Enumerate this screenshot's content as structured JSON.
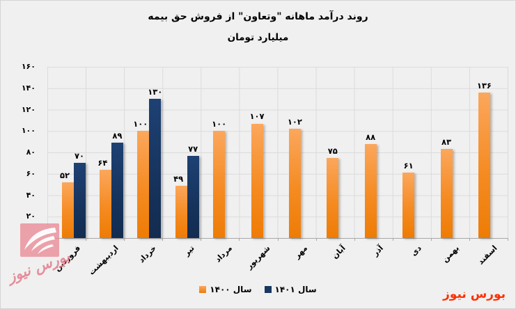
{
  "title": {
    "line1": "روند درآمد ماهانه \"وتعاون\" از فروش حق بیمه",
    "line2": "میلیارد تومان"
  },
  "chart_data": {
    "type": "bar",
    "title": "روند درآمد ماهانه \"وتعاون\" از فروش حق بیمه",
    "ylabel": "میلیارد تومان",
    "categories": [
      "فروردین",
      "اردیبهشت",
      "خرداد",
      "تیر",
      "مرداد",
      "شهریور",
      "مهر",
      "آبان",
      "آذر",
      "دی",
      "بهمن",
      "اسفند"
    ],
    "series": [
      {
        "name": "سال ۱۴۰۰",
        "color": "#EE7C05",
        "values": [
          52,
          64,
          100,
          49,
          100,
          107,
          102,
          75,
          88,
          61,
          83,
          136
        ],
        "labels": [
          "۵۲",
          "۶۴",
          "۱۰۰",
          "۴۹",
          "۱۰۰",
          "۱۰۷",
          "۱۰۲",
          "۷۵",
          "۸۸",
          "۶۱",
          "۸۳",
          "۱۳۶"
        ]
      },
      {
        "name": "سال ۱۴۰۱",
        "color": "#17375E",
        "values": [
          70,
          89,
          130,
          77,
          null,
          null,
          null,
          null,
          null,
          null,
          null,
          null
        ],
        "labels": [
          "۷۰",
          "۸۹",
          "۱۳۰",
          "۷۷",
          null,
          null,
          null,
          null,
          null,
          null,
          null,
          null
        ]
      }
    ],
    "ylim": [
      0,
      160
    ],
    "ytick_step": 20,
    "ytick_labels_bottom_up": [
      "۰",
      "۲۰",
      "۴۰",
      "۶۰",
      "۸۰",
      "۱۰۰",
      "۱۲۰",
      "۱۴۰",
      "۱۶۰"
    ],
    "grid": true,
    "legend_position": "bottom-center"
  },
  "legend": {
    "items": [
      {
        "label": "سال ۱۴۰۰",
        "color": "#EE7C05"
      },
      {
        "label": "سال ۱۴۰۱",
        "color": "#17375E"
      }
    ]
  },
  "watermark": {
    "logo_text": "بورس نیوز",
    "brand_text": "بورس نیوز",
    "logo_color": "#E98A96",
    "brand_color": "#FF2E00"
  },
  "colors": {
    "background": "#F0F0F0",
    "grid": "#DBDBDB",
    "axis": "#A8A8A8",
    "text": "#000000"
  }
}
